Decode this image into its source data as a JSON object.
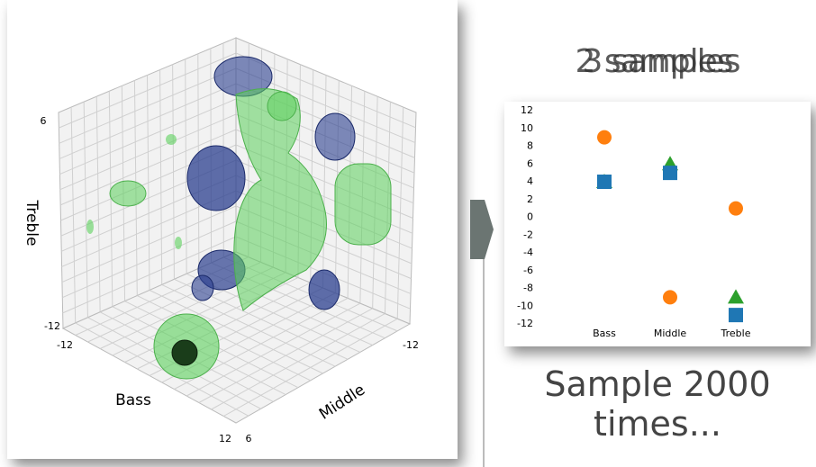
{
  "left_plot": {
    "axis_labels": {
      "z": "Treble",
      "x": "Bass",
      "y": "Middle"
    },
    "tick_labels": {
      "z_top": "6",
      "z_bottom": "-12",
      "x_back": "-12",
      "x_front": "12",
      "y_front": "6",
      "y_back": "-12"
    }
  },
  "sample_titles": [
    "2 samples",
    "3 samples"
  ],
  "caption": "Sample 2000 times...",
  "chart_data": {
    "type": "scatter",
    "categories": [
      "Bass",
      "Middle",
      "Treble"
    ],
    "series": [
      {
        "color": "#ff7f0e",
        "marker": "circle",
        "values": [
          9,
          -9,
          1
        ]
      },
      {
        "color": "#2ca02c",
        "marker": "triangle",
        "values": [
          4,
          6,
          -9
        ]
      },
      {
        "color": "#1f77b4",
        "marker": "square",
        "values": [
          4,
          5,
          -11
        ]
      }
    ],
    "ylim": [
      -12.5,
      12.5
    ],
    "yticks": [
      -12,
      -10,
      -8,
      -6,
      -4,
      -2,
      0,
      2,
      4,
      6,
      8,
      10,
      12
    ],
    "grid": false
  }
}
